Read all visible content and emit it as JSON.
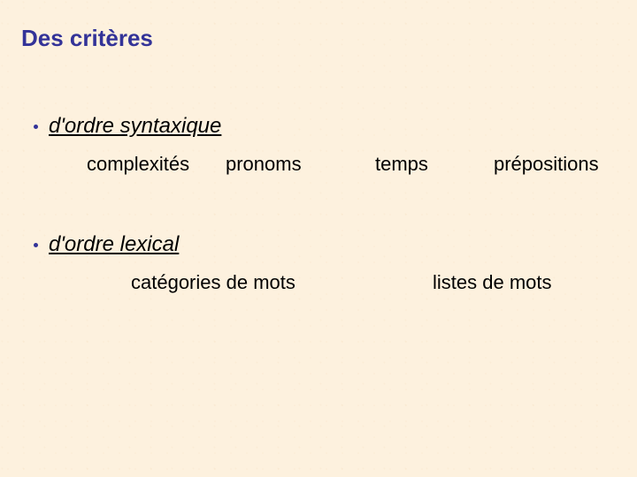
{
  "slide": {
    "title": "Des critères",
    "bullet1": "d'ordre syntaxique",
    "row1": {
      "a": "complexités",
      "b": "pronoms",
      "c": "temps",
      "d": "prépositions"
    },
    "bullet2": "d'ordre lexical",
    "row2": {
      "a": "catégories de mots",
      "b": "listes de mots"
    }
  },
  "colors": {
    "title": "#333398",
    "body": "#000000",
    "bullet": "#333398"
  },
  "layout": {
    "row1_lefts": [
      74,
      231,
      400,
      534
    ],
    "row2_lefts": [
      124,
      465
    ]
  }
}
